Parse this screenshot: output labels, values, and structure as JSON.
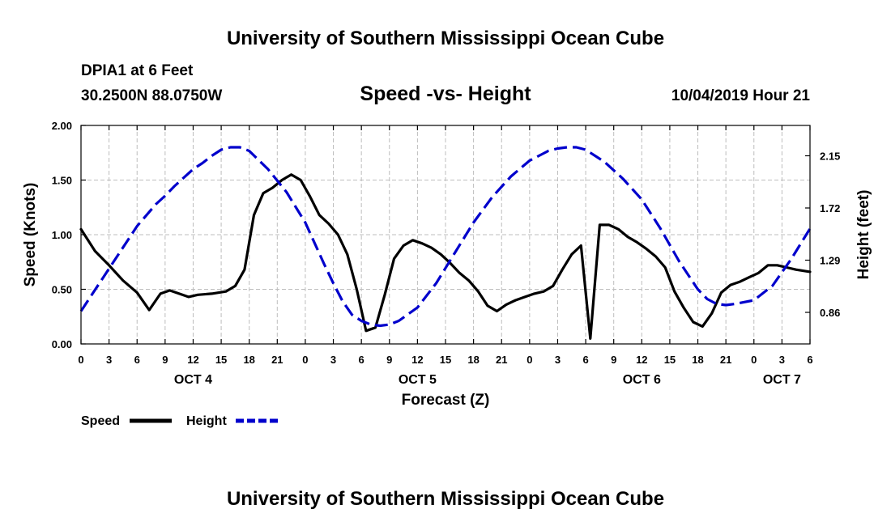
{
  "page": {
    "title_top": "University of Southern Mississippi Ocean Cube",
    "title_bottom": "University of Southern Mississippi Ocean Cube",
    "station": "DPIA1 at 6 Feet",
    "coords": "30.2500N 88.0750W",
    "datetime": "10/04/2019 Hour 21"
  },
  "chart_data": {
    "type": "line",
    "title": "Speed -vs- Height",
    "xlabel": "Forecast (Z)",
    "ylabel": "Speed (Knots)",
    "y2label": "Height (feet)",
    "xlim": [
      0,
      78
    ],
    "ylim": [
      0,
      2.0
    ],
    "y2lim": [
      0.6,
      2.4
    ],
    "grid": true,
    "y_ticks": [
      0,
      0.5,
      1.0,
      1.5,
      2.0
    ],
    "y_tick_labels": [
      "0.00",
      "0.50",
      "1.00",
      "1.50",
      "2.00"
    ],
    "y2_ticks": [
      0.86,
      1.29,
      1.72,
      2.15
    ],
    "y2_tick_labels": [
      "0.86",
      "1.29",
      "1.72",
      "2.15"
    ],
    "x_ticks": [
      0,
      3,
      6,
      9,
      12,
      15,
      18,
      21,
      24,
      27,
      30,
      33,
      36,
      39,
      42,
      45,
      48,
      51,
      54,
      57,
      60,
      63,
      66,
      69,
      72,
      75,
      78
    ],
    "x_tick_labels": [
      "0",
      "3",
      "6",
      "9",
      "12",
      "15",
      "18",
      "21",
      "0",
      "3",
      "6",
      "9",
      "12",
      "15",
      "18",
      "21",
      "0",
      "3",
      "6",
      "9",
      "12",
      "15",
      "18",
      "21",
      "0",
      "3",
      "6"
    ],
    "day_labels": [
      {
        "x": 12,
        "label": "OCT 4"
      },
      {
        "x": 36,
        "label": "OCT 5"
      },
      {
        "x": 60,
        "label": "OCT 6"
      },
      {
        "x": 75,
        "label": "OCT 7"
      }
    ],
    "legend": [
      {
        "name": "Speed",
        "color": "#000000",
        "dash": "solid"
      },
      {
        "name": "Height",
        "color": "#0000cc",
        "dash": "dashed"
      }
    ],
    "series": [
      {
        "name": "Speed",
        "axis": "left",
        "color": "#000000",
        "dash": "solid",
        "x": [
          0,
          1.5,
          3,
          4.5,
          6,
          7.3,
          8.5,
          9.5,
          10.5,
          11.5,
          12.5,
          14,
          15.5,
          16.5,
          17.5,
          18.5,
          19.5,
          20.5,
          21.5,
          22.5,
          23.5,
          24.5,
          25.5,
          26.5,
          27.5,
          28.5,
          29.5,
          30.5,
          31.5,
          32.5,
          33.5,
          34.5,
          35.5,
          36.5,
          37.5,
          38.5,
          39.5,
          40.5,
          41.5,
          42.5,
          43.5,
          44.5,
          45.5,
          46.5,
          47.5,
          48.5,
          49.5,
          50.5,
          51.5,
          52.5,
          53.5,
          54.5,
          55.5,
          56.5,
          57.5,
          58.5,
          59.5,
          60.5,
          61.5,
          62.5,
          63.5,
          64.5,
          65.5,
          66.5,
          67.5,
          68.5,
          69.5,
          70.5,
          71.5,
          72.5,
          73.5,
          74.5,
          75.5,
          76.5,
          78
        ],
        "y": [
          1.05,
          0.85,
          0.72,
          0.58,
          0.47,
          0.31,
          0.46,
          0.49,
          0.46,
          0.43,
          0.45,
          0.46,
          0.48,
          0.53,
          0.68,
          1.18,
          1.38,
          1.43,
          1.5,
          1.55,
          1.5,
          1.35,
          1.18,
          1.1,
          1.0,
          0.82,
          0.5,
          0.12,
          0.15,
          0.45,
          0.78,
          0.9,
          0.95,
          0.92,
          0.88,
          0.82,
          0.74,
          0.65,
          0.58,
          0.48,
          0.35,
          0.3,
          0.36,
          0.4,
          0.43,
          0.46,
          0.48,
          0.53,
          0.68,
          0.82,
          0.9,
          0.05,
          1.09,
          1.09,
          1.05,
          0.98,
          0.93,
          0.87,
          0.8,
          0.7,
          0.48,
          0.33,
          0.2,
          0.16,
          0.28,
          0.47,
          0.54,
          0.57,
          0.61,
          0.65,
          0.72,
          0.72,
          0.7,
          0.68,
          0.66
        ]
      },
      {
        "name": "Height",
        "axis": "right",
        "color": "#0000cc",
        "dash": "dashed",
        "x": [
          0,
          3,
          6,
          8,
          9,
          10,
          12,
          13,
          14,
          15,
          16,
          17,
          18,
          20,
          22,
          24,
          26,
          27,
          28,
          29,
          30,
          31,
          32,
          33,
          34,
          36,
          38,
          40,
          42,
          44,
          46,
          48,
          50,
          51,
          52,
          53,
          54,
          56,
          58,
          60,
          62,
          64,
          66,
          67,
          68,
          69,
          70,
          72,
          74,
          76,
          78
        ],
        "y": [
          0.87,
          1.22,
          1.57,
          1.75,
          1.82,
          1.9,
          2.04,
          2.09,
          2.15,
          2.2,
          2.22,
          2.22,
          2.19,
          2.04,
          1.85,
          1.6,
          1.26,
          1.1,
          0.95,
          0.84,
          0.79,
          0.76,
          0.75,
          0.76,
          0.79,
          0.9,
          1.1,
          1.35,
          1.6,
          1.81,
          1.98,
          2.11,
          2.19,
          2.21,
          2.22,
          2.22,
          2.2,
          2.1,
          1.96,
          1.79,
          1.55,
          1.28,
          1.05,
          0.97,
          0.93,
          0.92,
          0.93,
          0.96,
          1.08,
          1.3,
          1.55
        ]
      }
    ]
  }
}
